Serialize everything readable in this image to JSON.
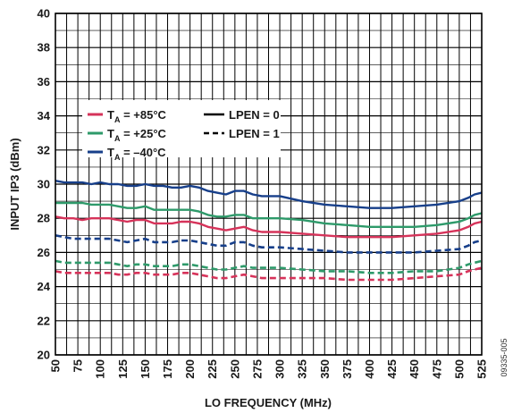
{
  "chart_data": {
    "type": "line",
    "xlabel": "LO FREQUENCY (MHz)",
    "ylabel": "INPUT IP3 (dBm)",
    "xlim": [
      50,
      525
    ],
    "ylim": [
      20,
      40
    ],
    "x_ticks": [
      "50",
      "75",
      "100",
      "125",
      "150",
      "175",
      "200",
      "225",
      "250",
      "275",
      "300",
      "325",
      "350",
      "375",
      "400",
      "425",
      "450",
      "475",
      "500",
      "525"
    ],
    "y_ticks": [
      "20",
      "22",
      "24",
      "26",
      "28",
      "30",
      "32",
      "34",
      "36",
      "38",
      "40"
    ],
    "x_minor_step": 12.5,
    "grid": true,
    "figure_id": "09335-005",
    "legend": {
      "placement": "upper-left",
      "temps": [
        {
          "pre": "T",
          "sub": "A",
          "post": " = +85°C",
          "color": "#d6335a"
        },
        {
          "pre": "T",
          "sub": "A",
          "post": " = +25°C",
          "color": "#2e9a6a"
        },
        {
          "pre": "T",
          "sub": "A",
          "post": " = –40°C",
          "color": "#173f8a"
        }
      ],
      "styles": [
        {
          "label": "LPEN = 0",
          "dash": "solid"
        },
        {
          "label": "LPEN = 1",
          "dash": "dashed"
        }
      ]
    },
    "x": [
      50,
      60,
      70,
      80,
      90,
      100,
      110,
      120,
      130,
      140,
      150,
      160,
      170,
      180,
      190,
      200,
      210,
      220,
      230,
      240,
      250,
      260,
      270,
      280,
      290,
      300,
      325,
      350,
      375,
      400,
      425,
      450,
      475,
      500,
      510,
      517,
      525
    ],
    "series": [
      {
        "temp": "+85°C",
        "lpen": "0",
        "color": "#d6335a",
        "dash": "solid",
        "values": [
          28.1,
          28.0,
          28.0,
          27.9,
          28.0,
          28.0,
          28.0,
          27.9,
          27.8,
          27.9,
          27.9,
          27.7,
          27.7,
          27.7,
          27.8,
          27.8,
          27.7,
          27.5,
          27.4,
          27.3,
          27.4,
          27.5,
          27.3,
          27.2,
          27.2,
          27.2,
          27.1,
          27.0,
          26.9,
          26.9,
          26.9,
          27.0,
          27.1,
          27.3,
          27.5,
          27.7,
          27.8
        ]
      },
      {
        "temp": "+85°C",
        "lpen": "1",
        "color": "#d6335a",
        "dash": "dashed",
        "values": [
          24.9,
          24.8,
          24.8,
          24.8,
          24.8,
          24.8,
          24.8,
          24.7,
          24.7,
          24.8,
          24.8,
          24.7,
          24.7,
          24.7,
          24.8,
          24.8,
          24.7,
          24.6,
          24.5,
          24.5,
          24.6,
          24.7,
          24.6,
          24.5,
          24.5,
          24.5,
          24.5,
          24.5,
          24.4,
          24.4,
          24.4,
          24.5,
          24.6,
          24.7,
          24.9,
          25.0,
          25.1
        ]
      },
      {
        "temp": "+25°C",
        "lpen": "0",
        "color": "#2e9a6a",
        "dash": "solid",
        "values": [
          28.9,
          28.9,
          28.9,
          28.9,
          28.8,
          28.8,
          28.8,
          28.7,
          28.6,
          28.6,
          28.7,
          28.5,
          28.5,
          28.5,
          28.5,
          28.5,
          28.4,
          28.2,
          28.1,
          28.1,
          28.2,
          28.2,
          28.0,
          28.0,
          28.0,
          28.0,
          27.9,
          27.7,
          27.6,
          27.5,
          27.5,
          27.5,
          27.6,
          27.8,
          28.0,
          28.2,
          28.3
        ]
      },
      {
        "temp": "+25°C",
        "lpen": "1",
        "color": "#2e9a6a",
        "dash": "dashed",
        "values": [
          25.5,
          25.4,
          25.4,
          25.4,
          25.4,
          25.4,
          25.4,
          25.3,
          25.2,
          25.3,
          25.3,
          25.2,
          25.2,
          25.2,
          25.3,
          25.3,
          25.2,
          25.1,
          25.0,
          25.0,
          25.1,
          25.2,
          25.1,
          25.1,
          25.1,
          25.1,
          25.0,
          24.9,
          24.9,
          24.8,
          24.8,
          24.9,
          24.9,
          25.1,
          25.3,
          25.4,
          25.5
        ]
      },
      {
        "temp": "-40°C",
        "lpen": "0",
        "color": "#173f8a",
        "dash": "solid",
        "values": [
          30.2,
          30.1,
          30.1,
          30.1,
          30.0,
          30.1,
          30.0,
          30.0,
          29.9,
          29.9,
          30.0,
          29.9,
          29.9,
          29.8,
          29.8,
          29.9,
          29.8,
          29.6,
          29.5,
          29.4,
          29.6,
          29.6,
          29.4,
          29.3,
          29.3,
          29.3,
          29.0,
          28.8,
          28.7,
          28.6,
          28.6,
          28.7,
          28.8,
          29.0,
          29.2,
          29.4,
          29.5
        ]
      },
      {
        "temp": "-40°C",
        "lpen": "1",
        "color": "#173f8a",
        "dash": "dashed",
        "values": [
          27.0,
          26.9,
          26.8,
          26.8,
          26.8,
          26.8,
          26.8,
          26.7,
          26.6,
          26.7,
          26.8,
          26.6,
          26.6,
          26.6,
          26.7,
          26.7,
          26.6,
          26.5,
          26.4,
          26.4,
          26.6,
          26.6,
          26.4,
          26.3,
          26.3,
          26.3,
          26.2,
          26.1,
          26.0,
          26.0,
          26.0,
          26.0,
          26.1,
          26.2,
          26.4,
          26.6,
          26.7
        ]
      }
    ]
  }
}
